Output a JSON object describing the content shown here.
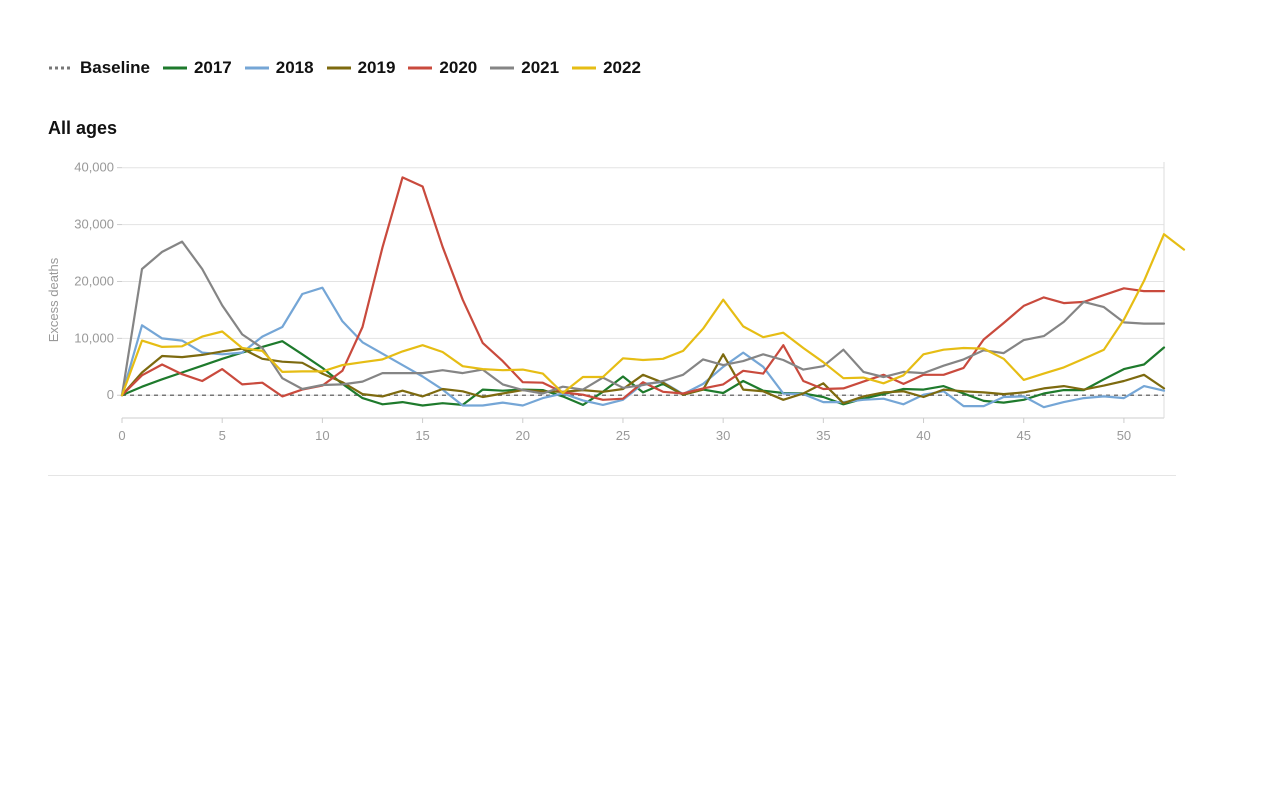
{
  "chart_data": {
    "type": "line",
    "title": "All ages",
    "xlabel": "",
    "ylabel": "Excess deaths",
    "xlim": [
      0,
      52
    ],
    "ylim": [
      -4000,
      41000
    ],
    "x_ticks": [
      0,
      5,
      10,
      15,
      20,
      25,
      30,
      35,
      40,
      45,
      50
    ],
    "y_ticks": [
      0,
      10000,
      20000,
      30000,
      40000
    ],
    "x_tick_labels": [
      "0",
      "5",
      "10",
      "15",
      "20",
      "25",
      "30",
      "35",
      "40",
      "45",
      "50"
    ],
    "y_tick_labels": [
      "0",
      "10,000",
      "20,000",
      "30,000",
      "40,000"
    ],
    "grid": "horizontal",
    "legend_position": "top-left",
    "baseline": {
      "name": "Baseline",
      "value": 0,
      "color": "#777777",
      "style": "dotted"
    },
    "series": [
      {
        "name": "2017",
        "color": "#1e7a2c",
        "values": [
          0,
          1500,
          2800,
          4000,
          5200,
          6400,
          7500,
          8500,
          9500,
          7200,
          4800,
          2000,
          -500,
          -1600,
          -1200,
          -1800,
          -1400,
          -1700,
          1000,
          800,
          1000,
          900,
          -200,
          -1700,
          600,
          3300,
          500,
          2000,
          100,
          1000,
          400,
          2500,
          800,
          400,
          300,
          -300,
          -1600,
          -600,
          200,
          1100,
          1000,
          1600,
          300,
          -1000,
          -1300,
          -800,
          300,
          900,
          900,
          2800,
          4600,
          5400,
          8400
        ]
      },
      {
        "name": "2018",
        "color": "#75a6d6",
        "values": [
          0,
          12300,
          10000,
          9600,
          7500,
          7200,
          7500,
          10300,
          12000,
          17800,
          18900,
          13000,
          9300,
          7300,
          5300,
          3300,
          1000,
          -1800,
          -1800,
          -1300,
          -1800,
          -500,
          300,
          -900,
          -1700,
          -800,
          2000,
          2300,
          200,
          2000,
          5000,
          7500,
          5000,
          300,
          200,
          -1200,
          -1200,
          -800,
          -600,
          -1600,
          100,
          700,
          -1900,
          -1900,
          -300,
          -200,
          -2100,
          -1200,
          -500,
          -200,
          -500,
          1600,
          800
        ]
      },
      {
        "name": "2019",
        "color": "#7d6a0f",
        "values": [
          0,
          4000,
          6900,
          6700,
          7100,
          7700,
          8200,
          6400,
          5900,
          5700,
          3800,
          2300,
          200,
          -200,
          800,
          -200,
          1100,
          700,
          -300,
          300,
          900,
          700,
          600,
          900,
          600,
          1100,
          3600,
          2200,
          100,
          1000,
          7200,
          1000,
          700,
          -800,
          300,
          2100,
          -1400,
          -200,
          500,
          700,
          -300,
          1000,
          700,
          500,
          200,
          500,
          1200,
          1600,
          1000,
          1700,
          2500,
          3600,
          1200
        ]
      },
      {
        "name": "2020",
        "color": "#c94a3d",
        "values": [
          0,
          3500,
          5400,
          3700,
          2500,
          4600,
          1900,
          2200,
          -200,
          1000,
          1700,
          4300,
          12000,
          26000,
          38300,
          36700,
          26100,
          16800,
          9200,
          6000,
          2300,
          2200,
          500,
          100,
          -800,
          -600,
          2300,
          600,
          300,
          1200,
          1900,
          4300,
          3800,
          8800,
          2500,
          1100,
          1200,
          2400,
          3600,
          2000,
          3600,
          3600,
          4800,
          9800,
          12700,
          15700,
          17200,
          16200,
          16400,
          17600,
          18800,
          18300,
          18300
        ]
      },
      {
        "name": "2021",
        "color": "#858585",
        "values": [
          0,
          22200,
          25200,
          27000,
          22200,
          15800,
          10700,
          8300,
          3000,
          1100,
          1800,
          1900,
          2400,
          3900,
          3900,
          3900,
          4400,
          3900,
          4500,
          1900,
          900,
          300,
          1500,
          1000,
          3100,
          1300,
          1800,
          2500,
          3600,
          6300,
          5300,
          6000,
          7200,
          6200,
          4500,
          5100,
          8000,
          4100,
          3200,
          4100,
          3900,
          5200,
          6300,
          7900,
          7400,
          9700,
          10400,
          12900,
          16400,
          15500,
          12800,
          12600,
          12600
        ]
      },
      {
        "name": "2022",
        "color": "#e6bd14",
        "values": [
          0,
          9600,
          8500,
          8600,
          10300,
          11200,
          8300,
          7800,
          4100,
          4200,
          4200,
          5300,
          5800,
          6300,
          7700,
          8800,
          7600,
          5100,
          4600,
          4400,
          4500,
          3800,
          400,
          3200,
          3200,
          6500,
          6200,
          6400,
          7800,
          11700,
          16800,
          12100,
          10200,
          11000,
          8300,
          5800,
          3000,
          3100,
          2100,
          3500,
          7200,
          8000,
          8300,
          8200,
          6400,
          2700,
          3800,
          4900,
          6400,
          8000,
          13300,
          20100,
          28300,
          25600
        ]
      }
    ]
  }
}
